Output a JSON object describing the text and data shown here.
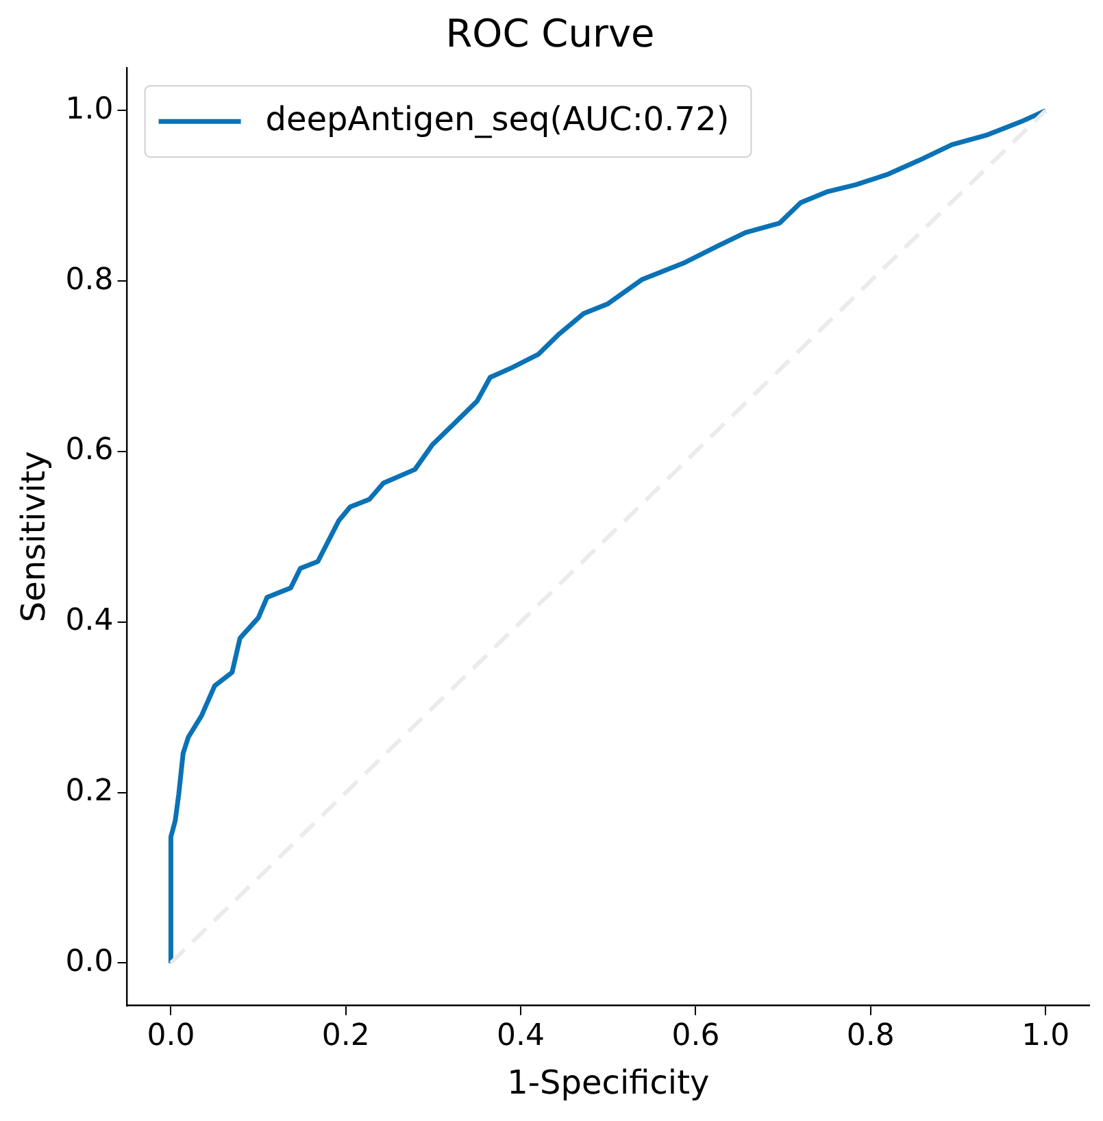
{
  "chart_data": {
    "type": "line",
    "title": "ROC Curve",
    "xlabel": "1-Specificity",
    "ylabel": "Sensitivity",
    "xlim": [
      -0.05,
      1.05
    ],
    "ylim": [
      -0.05,
      1.05
    ],
    "xticks": [
      {
        "value": 0,
        "label": "0.0"
      },
      {
        "value": 0.2,
        "label": "0.2"
      },
      {
        "value": 0.4,
        "label": "0.4"
      },
      {
        "value": 0.6,
        "label": "0.6"
      },
      {
        "value": 0.8,
        "label": "0.8"
      },
      {
        "value": 1,
        "label": "1.0"
      }
    ],
    "yticks": [
      {
        "value": 0,
        "label": "0.0"
      },
      {
        "value": 0.2,
        "label": "0.2"
      },
      {
        "value": 0.4,
        "label": "0.4"
      },
      {
        "value": 0.6,
        "label": "0.6"
      },
      {
        "value": 0.8,
        "label": "0.8"
      },
      {
        "value": 1,
        "label": "1.0"
      }
    ],
    "grid": false,
    "legend": "top left",
    "marker": "none",
    "series": [
      {
        "color": "#ebebeb",
        "line_style": "dashed",
        "x": [
          0,
          1
        ],
        "values": [
          0,
          1
        ]
      },
      {
        "name": "deepAntigen_seq(AUC:0.72)",
        "color": "#0a72b5",
        "line_style": "solid",
        "x": [
          0,
          0,
          0.005,
          0.009,
          0.014,
          0.02,
          0.035,
          0.05,
          0.07,
          0.079,
          0.1,
          0.11,
          0.137,
          0.148,
          0.168,
          0.192,
          0.205,
          0.227,
          0.243,
          0.279,
          0.299,
          0.326,
          0.35,
          0.365,
          0.389,
          0.42,
          0.444,
          0.472,
          0.499,
          0.539,
          0.586,
          0.625,
          0.657,
          0.696,
          0.72,
          0.751,
          0.783,
          0.819,
          0.854,
          0.893,
          0.932,
          0.972,
          1
        ],
        "values": [
          0,
          0.148,
          0.167,
          0.198,
          0.246,
          0.265,
          0.29,
          0.325,
          0.341,
          0.381,
          0.405,
          0.429,
          0.44,
          0.463,
          0.471,
          0.519,
          0.535,
          0.544,
          0.563,
          0.579,
          0.608,
          0.635,
          0.659,
          0.687,
          0.698,
          0.714,
          0.738,
          0.762,
          0.773,
          0.802,
          0.821,
          0.841,
          0.857,
          0.868,
          0.892,
          0.905,
          0.913,
          0.925,
          0.941,
          0.96,
          0.971,
          0.987,
          1
        ]
      }
    ]
  }
}
